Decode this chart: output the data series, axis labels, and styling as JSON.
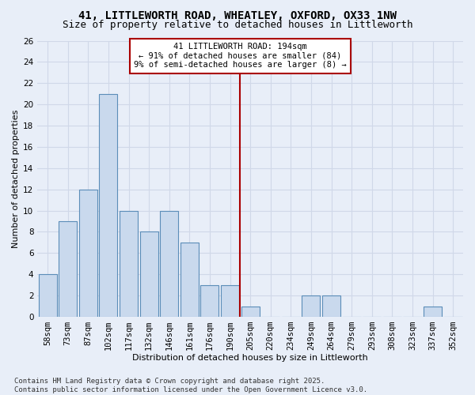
{
  "title_line1": "41, LITTLEWORTH ROAD, WHEATLEY, OXFORD, OX33 1NW",
  "title_line2": "Size of property relative to detached houses in Littleworth",
  "xlabel": "Distribution of detached houses by size in Littleworth",
  "ylabel": "Number of detached properties",
  "categories": [
    "58sqm",
    "73sqm",
    "87sqm",
    "102sqm",
    "117sqm",
    "132sqm",
    "146sqm",
    "161sqm",
    "176sqm",
    "190sqm",
    "205sqm",
    "220sqm",
    "234sqm",
    "249sqm",
    "264sqm",
    "279sqm",
    "293sqm",
    "308sqm",
    "323sqm",
    "337sqm",
    "352sqm"
  ],
  "values": [
    4,
    9,
    12,
    21,
    10,
    8,
    10,
    7,
    3,
    3,
    1,
    0,
    0,
    2,
    2,
    0,
    0,
    0,
    0,
    1,
    0
  ],
  "bar_color": "#c9d9ed",
  "bar_edge_color": "#5b8db8",
  "vline_x_idx": 9.5,
  "vline_color": "#aa0000",
  "annotation_text": "41 LITTLEWORTH ROAD: 194sqm\n← 91% of detached houses are smaller (84)\n9% of semi-detached houses are larger (8) →",
  "annotation_box_color": "#ffffff",
  "annotation_box_edge": "#aa0000",
  "ylim": [
    0,
    26
  ],
  "yticks": [
    0,
    2,
    4,
    6,
    8,
    10,
    12,
    14,
    16,
    18,
    20,
    22,
    24,
    26
  ],
  "background_color": "#e8eef8",
  "grid_color": "#d0d8e8",
  "footer": "Contains HM Land Registry data © Crown copyright and database right 2025.\nContains public sector information licensed under the Open Government Licence v3.0.",
  "title_fontsize": 10,
  "subtitle_fontsize": 9,
  "axis_label_fontsize": 8,
  "tick_fontsize": 7.5,
  "annotation_fontsize": 7.5,
  "footer_fontsize": 6.5
}
